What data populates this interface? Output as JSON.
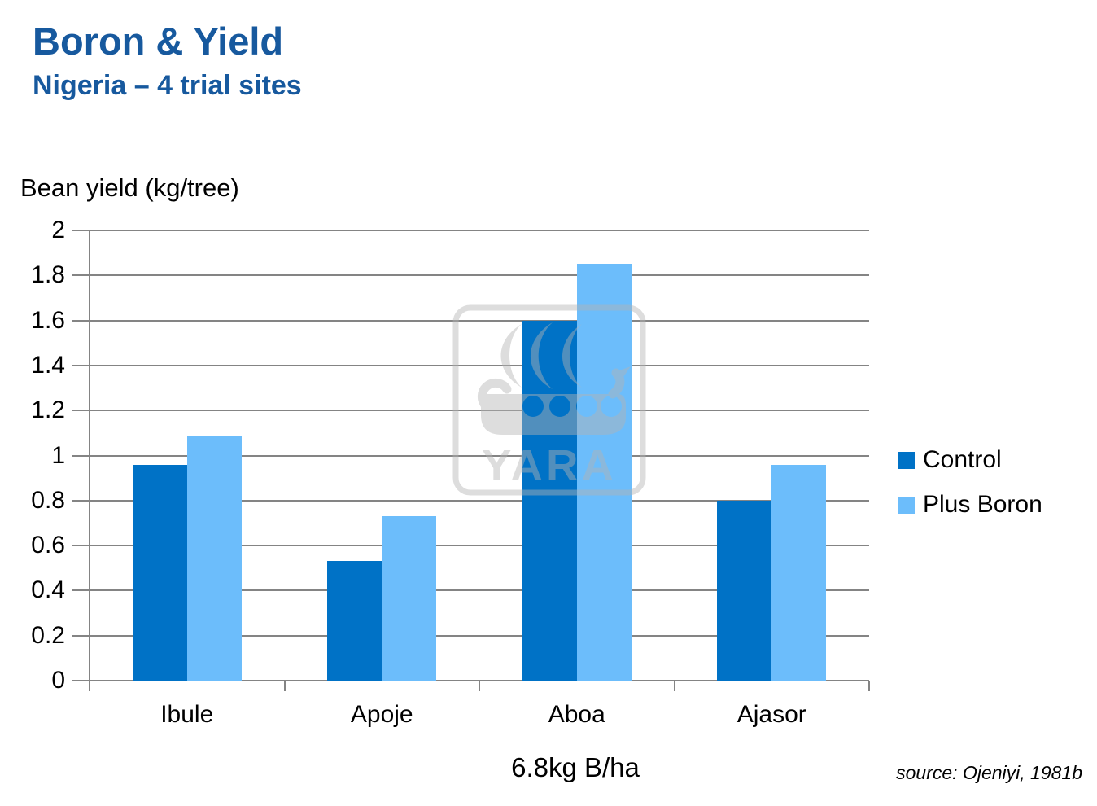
{
  "slide": {
    "title": "Boron & Yield",
    "subtitle": "Nigeria – 4 trial sites",
    "source": "source: Ojeniyi, 1981b",
    "watermark": "YARA"
  },
  "colors": {
    "title_blue": "#17599E",
    "control_bar": "#0072C6",
    "plus_boron_bar": "#6CBDFB",
    "gridline": "#848484",
    "watermark_gray": "#B4B4B4"
  },
  "chart_data": {
    "type": "bar",
    "title": "",
    "axis_title": "Bean yield (kg/tree)",
    "xlabel": "6.8kg B/ha",
    "categories": [
      "Ibule",
      "Apoje",
      "Aboa",
      "Ajasor"
    ],
    "series": [
      {
        "name": "Control",
        "color": "#0072C6",
        "values": [
          0.96,
          0.53,
          1.6,
          0.8
        ]
      },
      {
        "name": "Plus Boron",
        "color": "#6CBDFB",
        "values": [
          1.09,
          0.73,
          1.85,
          0.96
        ]
      }
    ],
    "ylim": [
      0,
      2
    ],
    "ytick_step": 0.2,
    "yticks": [
      "2",
      "1.8",
      "1.6",
      "1.4",
      "1.2",
      "1",
      "0.8",
      "0.6",
      "0.4",
      "0.2",
      "0"
    ],
    "grid": true,
    "legend_position": "right"
  }
}
